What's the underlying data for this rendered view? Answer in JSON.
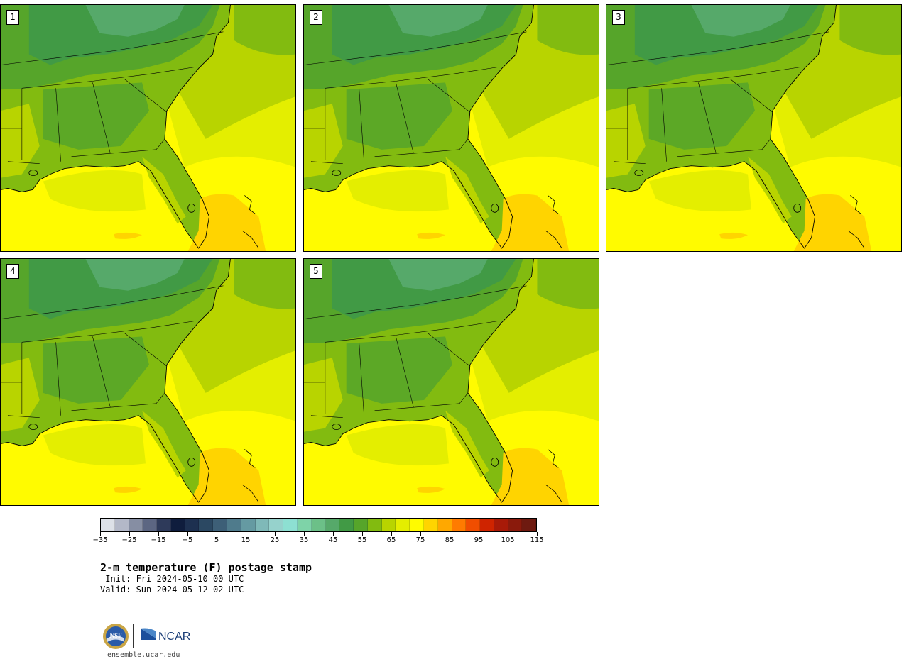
{
  "panels": [
    {
      "member": "1"
    },
    {
      "member": "2"
    },
    {
      "member": "3"
    },
    {
      "member": "4"
    },
    {
      "member": "5"
    }
  ],
  "colorbar": {
    "colors": [
      "#dde1e8",
      "#b3b8c8",
      "#868ea3",
      "#5c6682",
      "#2e3a5a",
      "#0f1d3d",
      "#1d3050",
      "#2b4862",
      "#3d5f77",
      "#4f7b8c",
      "#659aa2",
      "#7fb9b8",
      "#96d2cc",
      "#8de0d2",
      "#7ed3a8",
      "#6cc088",
      "#56a96a",
      "#419a45",
      "#56a52a",
      "#82bb10",
      "#b8d400",
      "#e4ee00",
      "#fffb00",
      "#ffd400",
      "#ffa800",
      "#ff7b00",
      "#f04e00",
      "#cf2400",
      "#a81a08",
      "#8a1a0c",
      "#6e1a10"
    ],
    "tick_labels": [
      "−35",
      "−25",
      "−15",
      "−5",
      "5",
      "15",
      "25",
      "35",
      "45",
      "55",
      "65",
      "75",
      "85",
      "95",
      "105",
      "115"
    ]
  },
  "title": "2-m temperature (F) postage stamp",
  "init": " Init: Fri 2024-05-10 00 UTC",
  "valid": "Valid: Sun 2024-05-12 02 UTC",
  "logos": {
    "nsf": "NSF",
    "ncar": "NCAR"
  },
  "url": "ensemble.ucar.edu",
  "colors": {
    "ocean_warm": "#fffb00",
    "ocean_mild": "#e4ee00",
    "land_cool": "#419a45",
    "gulf_stream": "#ffd400"
  }
}
